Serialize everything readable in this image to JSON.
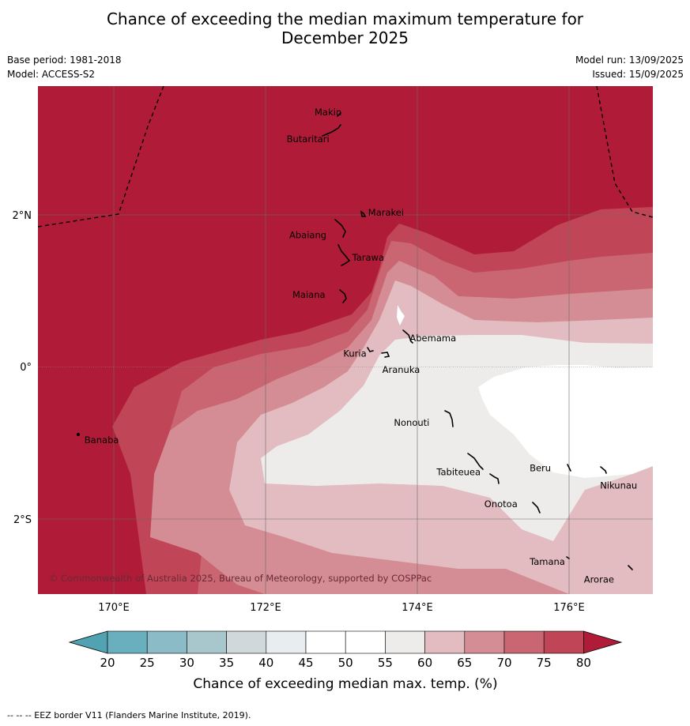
{
  "title_line1": "Chance of exceeding the median maximum temperature for",
  "title_line2": "December 2025",
  "meta_left": [
    "Base period: 1981-2018",
    "Model: ACCESS-S2"
  ],
  "meta_right": [
    "Model run: 13/09/2025",
    "Issued: 15/09/2025"
  ],
  "copyright": "© Commonwealth of Australia 2025, Bureau of Meteorology, supported by COSPPac",
  "footer": "--  --  -- EEZ border V11 (Flanders Marine Institute, 2019).",
  "axes": {
    "lon_ticks": [
      "170°E",
      "172°E",
      "174°E",
      "176°E"
    ],
    "lat_ticks": [
      "2°N",
      "0°",
      "2°S"
    ],
    "lon_range": [
      169.0,
      177.1
    ],
    "lat_range": [
      -3.0,
      3.7
    ]
  },
  "islands": [
    {
      "name": "Makin",
      "lon": 173.0,
      "lat": 3.35
    },
    {
      "name": "Butaritari",
      "lon": 172.85,
      "lat": 3.1
    },
    {
      "name": "Marakei",
      "lon": 173.3,
      "lat": 2.0
    },
    {
      "name": "Abaiang",
      "lon": 173.0,
      "lat": 1.8
    },
    {
      "name": "Tarawa",
      "lon": 173.1,
      "lat": 1.4
    },
    {
      "name": "Maiana",
      "lon": 173.0,
      "lat": 0.95
    },
    {
      "name": "Kuria",
      "lon": 173.4,
      "lat": 0.22
    },
    {
      "name": "Abemama",
      "lon": 173.9,
      "lat": 0.38
    },
    {
      "name": "Aranuka",
      "lon": 173.6,
      "lat": 0.17
    },
    {
      "name": "Banaba",
      "lon": 169.55,
      "lat": -0.88
    },
    {
      "name": "Nonouti",
      "lon": 174.4,
      "lat": -0.65
    },
    {
      "name": "Tabiteuea",
      "lon": 174.9,
      "lat": -1.35
    },
    {
      "name": "Beru",
      "lon": 175.98,
      "lat": -1.33
    },
    {
      "name": "Nikunau",
      "lon": 176.45,
      "lat": -1.35
    },
    {
      "name": "Onotoa",
      "lon": 175.55,
      "lat": -1.8
    },
    {
      "name": "Tamana",
      "lon": 175.98,
      "lat": -2.5
    },
    {
      "name": "Arorae",
      "lon": 176.82,
      "lat": -2.65
    }
  ],
  "legend": {
    "label": "Chance of exceeding median max. temp. (%)",
    "ticks": [
      "20",
      "25",
      "30",
      "35",
      "40",
      "45",
      "50",
      "55",
      "60",
      "65",
      "70",
      "75",
      "80"
    ],
    "colors": [
      "#6aafbe",
      "#8abbc7",
      "#a8c7cd",
      "#d1d8dc",
      "#e8eef0",
      "#ffffff",
      "#ffffff",
      "#eeecea",
      "#e2bcc0",
      "#d58d95",
      "#c96671",
      "#c04556"
    ],
    "extend_low_color": "#52a3b1",
    "extend_high_color": "#b01c37"
  },
  "field_colors": {
    "gt80": "#b01c37",
    "75_80": "#c04556",
    "70_75": "#c96671",
    "65_70": "#d58d95",
    "60_65": "#e2bcc0",
    "55_60": "#eeecea",
    "50_55": "#ffffff"
  }
}
